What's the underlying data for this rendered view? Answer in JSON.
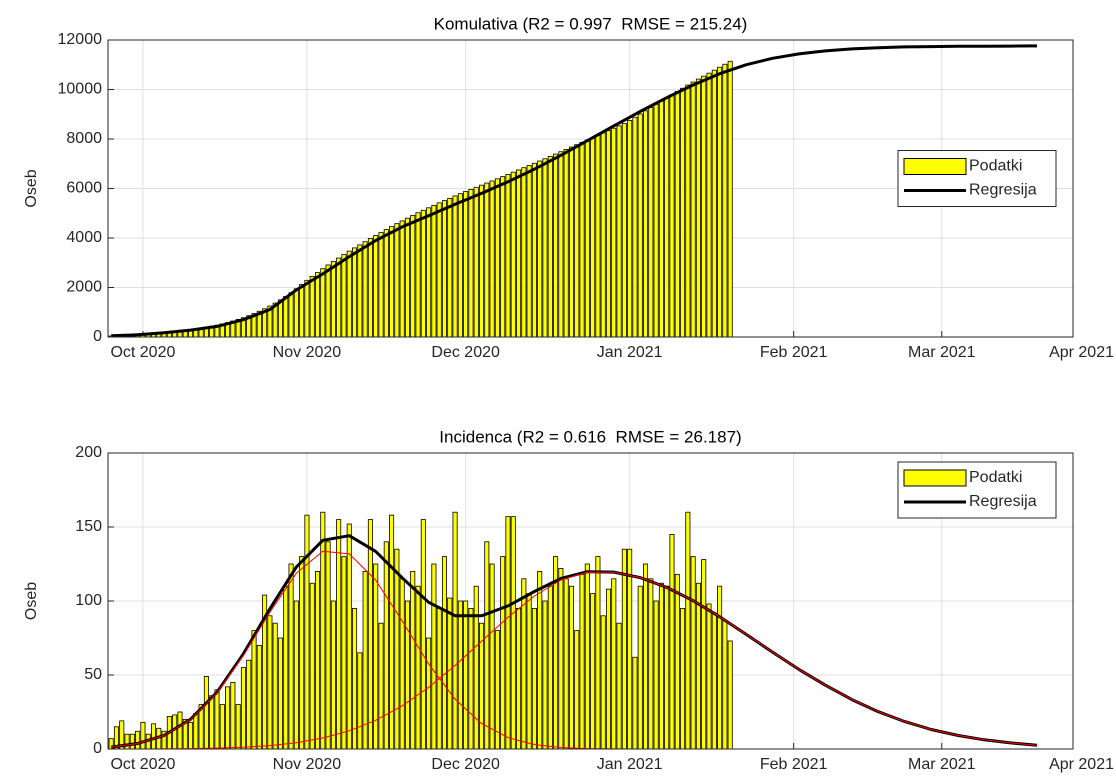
{
  "chart_data": [
    {
      "type": "bar",
      "title": "Komulativa (R2 = 0.997  RMSE = 215.24)",
      "ylabel": "Oseb",
      "xlim": [
        -6.6,
        175.8
      ],
      "xticks": [
        {
          "value": 0,
          "label": "Oct 2020"
        },
        {
          "value": 31,
          "label": "Nov 2020"
        },
        {
          "value": 61,
          "label": "Dec 2020"
        },
        {
          "value": 92,
          "label": "Jan 2021"
        },
        {
          "value": 123,
          "label": "Feb 2021"
        },
        {
          "value": 151,
          "label": "Mar 2021"
        },
        {
          "value": 182,
          "label": "Apr 2021"
        }
      ],
      "ylim": [
        0,
        12000
      ],
      "yticks": [
        0,
        2000,
        4000,
        6000,
        8000,
        10000,
        12000
      ],
      "grid": true,
      "legend": "east",
      "series": [
        {
          "name": "Podatki",
          "type": "bar",
          "color": "#ffff00",
          "x": [
            -6,
            -5,
            -4,
            -3,
            -2,
            -1,
            0,
            1,
            2,
            3,
            4,
            5,
            6,
            7,
            8,
            9,
            10,
            11,
            12,
            13,
            14,
            15,
            16,
            17,
            18,
            19,
            20,
            21,
            22,
            23,
            24,
            25,
            26,
            27,
            28,
            29,
            30,
            31,
            32,
            33,
            34,
            35,
            36,
            37,
            38,
            39,
            40,
            41,
            42,
            43,
            44,
            45,
            46,
            47,
            48,
            49,
            50,
            51,
            52,
            53,
            54,
            55,
            56,
            57,
            58,
            59,
            60,
            61,
            62,
            63,
            64,
            65,
            66,
            67,
            68,
            69,
            70,
            71,
            72,
            73,
            74,
            75,
            76,
            77,
            78,
            79,
            80,
            81,
            82,
            83,
            84,
            85,
            86,
            87,
            88,
            89,
            90,
            91,
            92,
            93,
            94,
            95,
            96,
            97,
            98,
            99,
            100,
            101,
            102,
            103,
            104,
            105,
            106,
            107,
            108,
            109,
            110,
            111
          ],
          "values": [
            40,
            50,
            60,
            70,
            85,
            100,
            115,
            130,
            145,
            162,
            180,
            200,
            222,
            246,
            272,
            300,
            330,
            362,
            398,
            438,
            480,
            530,
            585,
            645,
            710,
            780,
            860,
            945,
            1040,
            1140,
            1250,
            1370,
            1500,
            1640,
            1790,
            1950,
            2120,
            2290,
            2450,
            2600,
            2760,
            2910,
            3050,
            3190,
            3330,
            3470,
            3600,
            3720,
            3850,
            3980,
            4100,
            4220,
            4340,
            4460,
            4580,
            4690,
            4800,
            4910,
            5020,
            5120,
            5220,
            5320,
            5420,
            5510,
            5600,
            5700,
            5790,
            5880,
            5965,
            6050,
            6135,
            6220,
            6305,
            6390,
            6480,
            6570,
            6660,
            6750,
            6840,
            6930,
            7020,
            7110,
            7200,
            7295,
            7390,
            7485,
            7580,
            7675,
            7770,
            7865,
            7960,
            8055,
            8150,
            8245,
            8340,
            8435,
            8530,
            8625,
            8750,
            8880,
            9010,
            9140,
            9270,
            9400,
            9530,
            9660,
            9790,
            9920,
            10050,
            10180,
            10300,
            10420,
            10540,
            10660,
            10780,
            10900,
            11020,
            11140
          ]
        },
        {
          "name": "Regresija",
          "type": "line",
          "color": "#000000",
          "linewidth": 3,
          "x": [
            -6,
            -1,
            4,
            9,
            14,
            19,
            24,
            29,
            34,
            39,
            44,
            49,
            54,
            59,
            64,
            69,
            74,
            79,
            84,
            89,
            94,
            99,
            104,
            109,
            114,
            119,
            124,
            129,
            134,
            139,
            144,
            149,
            154,
            159,
            164,
            169
          ],
          "values": [
            50,
            90,
            170,
            280,
            430,
            700,
            1110,
            1900,
            2550,
            3250,
            3900,
            4450,
            4900,
            5360,
            5800,
            6270,
            6780,
            7340,
            7930,
            8530,
            9110,
            9670,
            10180,
            10640,
            11000,
            11260,
            11440,
            11560,
            11640,
            11690,
            11720,
            11735,
            11745,
            11750,
            11755,
            11760
          ]
        }
      ]
    },
    {
      "type": "bar",
      "title": "Incidenca (R2 = 0.616  RMSE = 26.187)",
      "ylabel": "Oseb",
      "xlim": [
        -6.6,
        175.8
      ],
      "xticks": [
        {
          "value": 0,
          "label": "Oct 2020"
        },
        {
          "value": 31,
          "label": "Nov 2020"
        },
        {
          "value": 61,
          "label": "Dec 2020"
        },
        {
          "value": 92,
          "label": "Jan 2021"
        },
        {
          "value": 123,
          "label": "Feb 2021"
        },
        {
          "value": 151,
          "label": "Mar 2021"
        },
        {
          "value": 182,
          "label": "Apr 2021"
        }
      ],
      "ylim": [
        0,
        200
      ],
      "yticks": [
        0,
        50,
        100,
        150,
        200
      ],
      "grid": true,
      "legend": "northeast",
      "series": [
        {
          "name": "Podatki",
          "type": "bar",
          "color": "#ffff00",
          "x": [
            -6,
            -5,
            -4,
            -3,
            -2,
            -1,
            0,
            1,
            2,
            3,
            4,
            5,
            6,
            7,
            8,
            9,
            10,
            11,
            12,
            13,
            14,
            15,
            16,
            17,
            18,
            19,
            20,
            21,
            22,
            23,
            24,
            25,
            26,
            27,
            28,
            29,
            30,
            31,
            32,
            33,
            34,
            35,
            36,
            37,
            38,
            39,
            40,
            41,
            42,
            43,
            44,
            45,
            46,
            47,
            48,
            49,
            50,
            51,
            52,
            53,
            54,
            55,
            56,
            57,
            58,
            59,
            60,
            61,
            62,
            63,
            64,
            65,
            66,
            67,
            68,
            69,
            70,
            71,
            72,
            73,
            74,
            75,
            76,
            77,
            78,
            79,
            80,
            81,
            82,
            83,
            84,
            85,
            86,
            87,
            88,
            89,
            90,
            91,
            92,
            93,
            94,
            95,
            96,
            97,
            98,
            99,
            100,
            101,
            102,
            103,
            104,
            105,
            106,
            107,
            108,
            109,
            110,
            111
          ],
          "values": [
            7,
            15,
            19,
            10,
            10,
            12,
            18,
            10,
            17,
            14,
            12,
            22,
            23,
            25,
            20,
            18,
            24,
            30,
            49,
            36,
            40,
            30,
            42,
            45,
            30,
            55,
            60,
            80,
            70,
            104,
            90,
            85,
            75,
            110,
            125,
            100,
            130,
            158,
            112,
            120,
            160,
            140,
            100,
            155,
            130,
            152,
            95,
            65,
            120,
            155,
            125,
            85,
            140,
            158,
            135,
            115,
            100,
            120,
            110,
            155,
            75,
            125,
            95,
            130,
            102,
            160,
            100,
            100,
            95,
            110,
            85,
            140,
            125,
            80,
            130,
            157,
            157,
            95,
            115,
            105,
            95,
            120,
            100,
            110,
            130,
            122,
            115,
            110,
            80,
            118,
            125,
            105,
            130,
            90,
            108,
            115,
            85,
            135,
            135,
            62,
            110,
            125,
            115,
            100,
            112,
            110,
            145,
            118,
            95,
            160,
            130,
            112,
            128,
            98,
            92,
            110,
            87,
            73
          ]
        },
        {
          "name": "Regresija",
          "type": "line",
          "color": "#000000",
          "linewidth": 3,
          "x": [
            -6,
            -1,
            4,
            9,
            14,
            19,
            24,
            29,
            34,
            39,
            44,
            49,
            54,
            59,
            64,
            69,
            74,
            79,
            84,
            89,
            94,
            99,
            104,
            109,
            114,
            119,
            124,
            129,
            134,
            139,
            144,
            149,
            154,
            159,
            164,
            169
          ],
          "values": [
            1.3,
            3.7,
            9.2,
            20.1,
            38.4,
            64.3,
            94.7,
            122.9,
            141.0,
            144.1,
            133.5,
            115.7,
            99.1,
            90.1,
            90.0,
            96.7,
            106.4,
            115.2,
            119.8,
            119.5,
            115.8,
            109.2,
            100.2,
            89.4,
            77.6,
            65.5,
            53.8,
            43.1,
            33.4,
            25.2,
            18.5,
            13.2,
            9.2,
            6.2,
            4.1,
            2.6
          ]
        },
        {
          "type": "line",
          "color": "#ff0000",
          "linewidth": 1,
          "x": [
            -6,
            -1,
            4,
            9,
            14,
            19,
            24,
            29,
            34,
            39,
            44,
            49,
            54,
            59,
            64,
            69,
            74,
            79,
            84,
            89,
            94,
            99,
            104,
            109,
            114,
            119,
            124,
            129,
            134,
            139,
            144,
            149,
            154,
            159,
            164,
            169
          ],
          "values": [
            1.3,
            3.7,
            9.1,
            19.8,
            37.8,
            63.1,
            92.4,
            118.7,
            133.6,
            131.8,
            114.1,
            86.5,
            57.5,
            33.6,
            17.2,
            7.7,
            3.0,
            1.0,
            0.3,
            0.1,
            0,
            0,
            0,
            0,
            0,
            0,
            0,
            0,
            0,
            0,
            0,
            0,
            0,
            0,
            0,
            0
          ]
        },
        {
          "type": "line",
          "color": "#ff0000",
          "linewidth": 1,
          "x": [
            -6,
            -1,
            4,
            9,
            14,
            19,
            24,
            29,
            34,
            39,
            44,
            49,
            54,
            59,
            64,
            69,
            74,
            79,
            84,
            89,
            94,
            99,
            104,
            109,
            114,
            119,
            124,
            129,
            134,
            139,
            144,
            149,
            154,
            159,
            164,
            169
          ],
          "values": [
            0,
            0,
            0.1,
            0.3,
            0.6,
            1.2,
            2.3,
            4.2,
            7.4,
            12.3,
            19.4,
            29.2,
            41.6,
            56.5,
            72.8,
            89.0,
            103.4,
            114.2,
            119.5,
            119.4,
            115.8,
            109.2,
            100.2,
            89.4,
            77.6,
            65.5,
            53.8,
            43.1,
            33.4,
            25.2,
            18.5,
            13.2,
            9.2,
            6.2,
            4.1,
            2.6
          ]
        }
      ]
    }
  ]
}
